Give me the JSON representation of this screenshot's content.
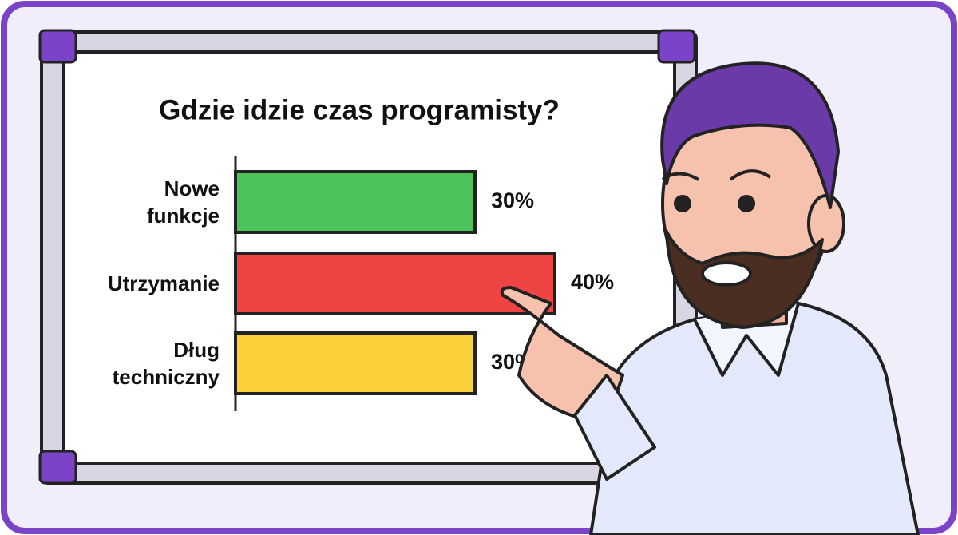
{
  "chart_data": {
    "type": "bar",
    "orientation": "horizontal",
    "title": "Gdzie idzie czas programisty?",
    "categories": [
      "Nowe funkcje",
      "Utrzymanie",
      "Dług techniczny"
    ],
    "values": [
      30,
      40,
      30
    ],
    "value_labels": [
      "30%",
      "40%",
      "30%"
    ],
    "colors": [
      "#4cc35a",
      "#ef4444",
      "#fcd03a"
    ]
  }
}
